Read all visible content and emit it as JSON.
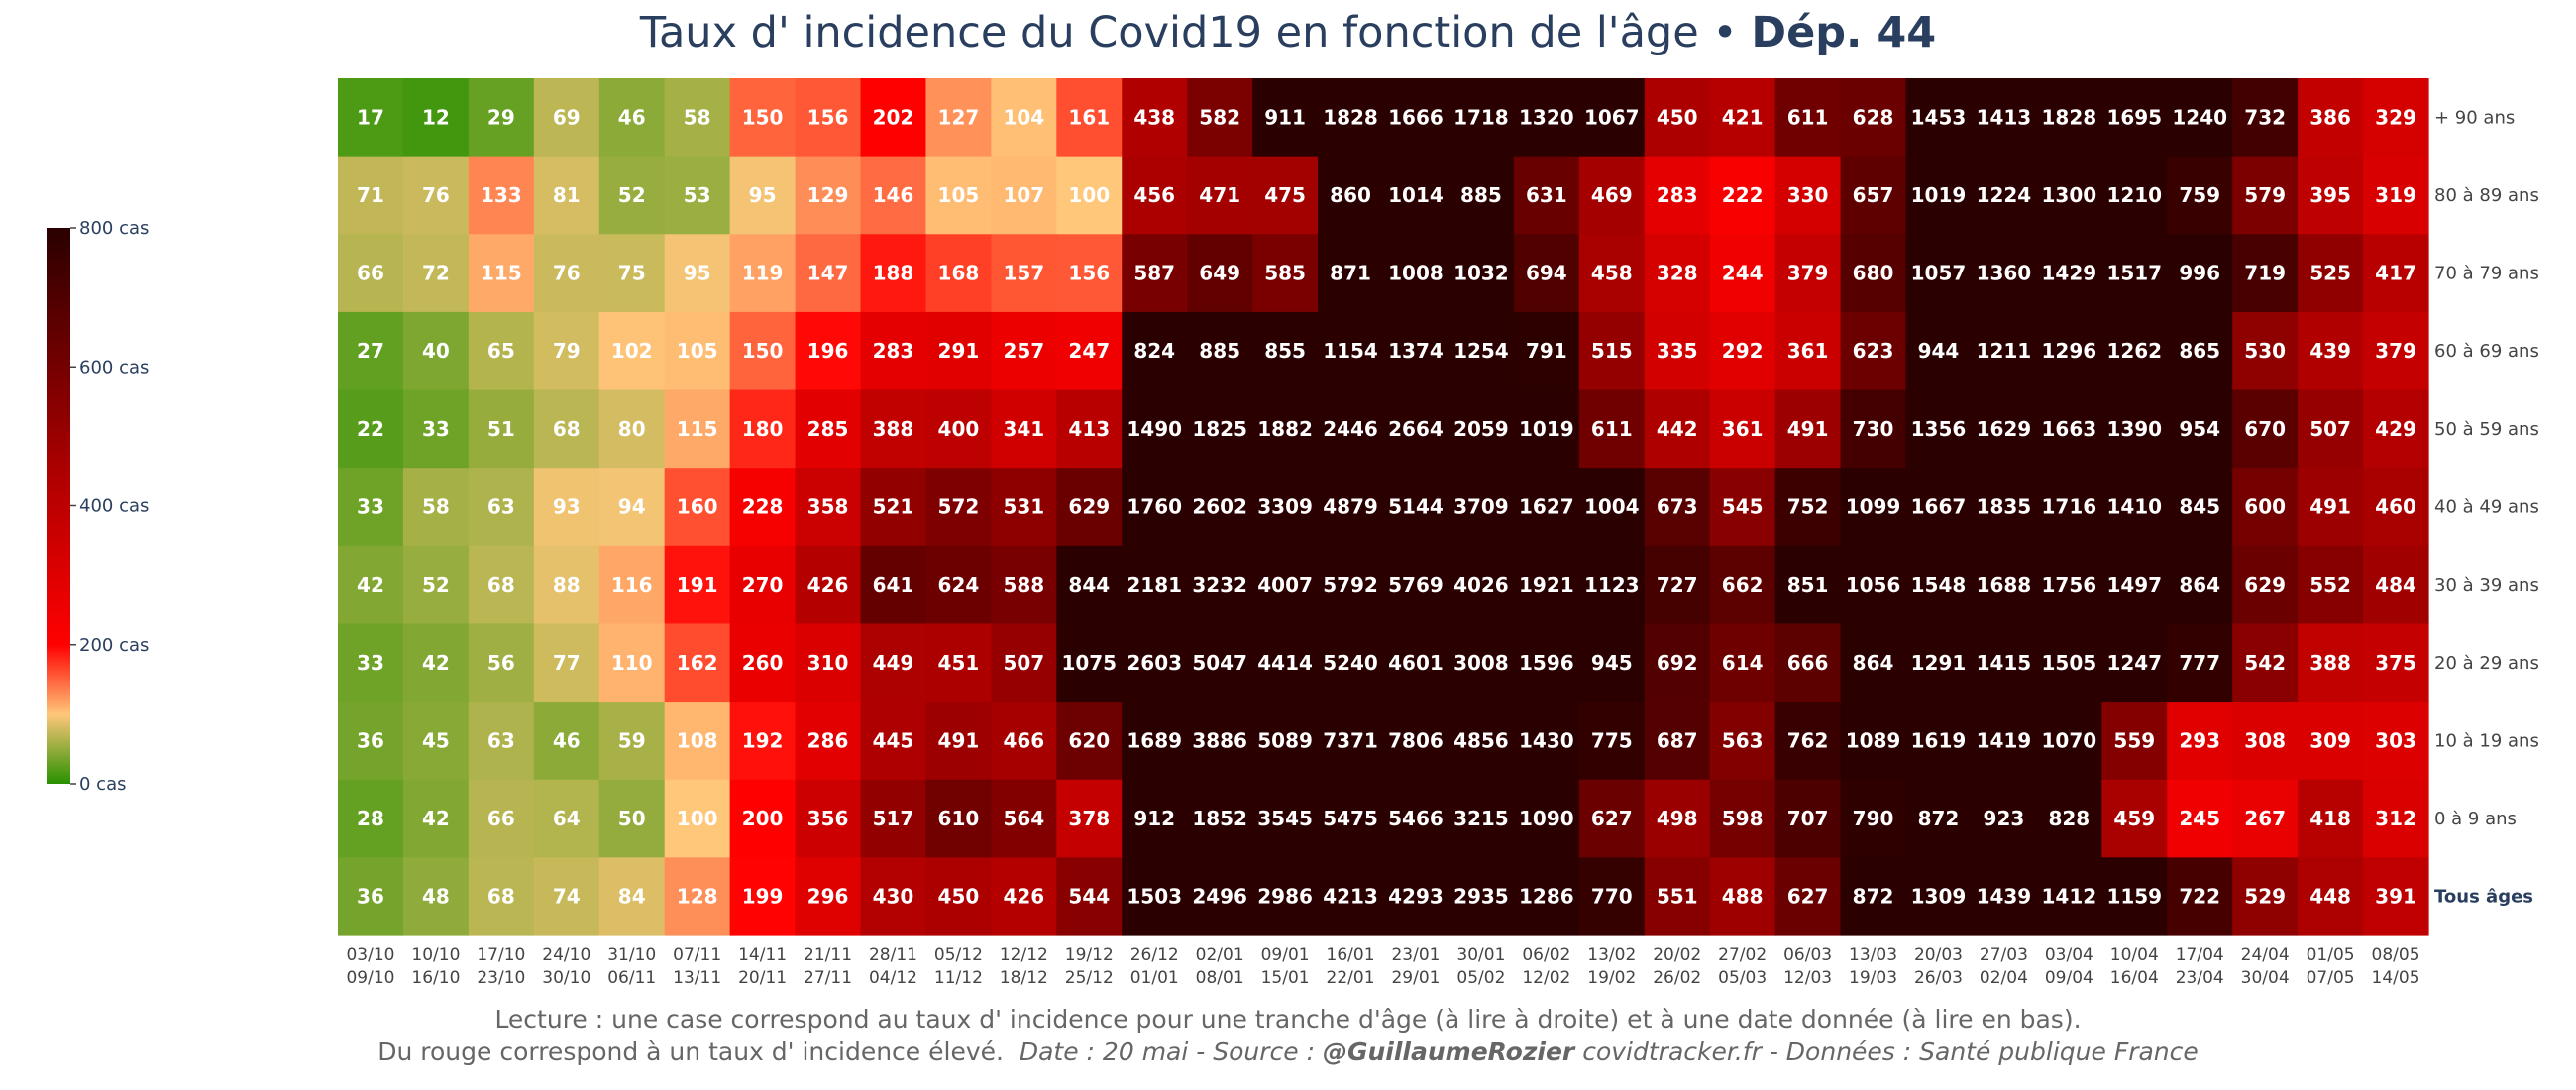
{
  "title": {
    "main": "Taux d' incidence du Covid19 en fonction de l'âge •",
    "bold": "Dép. 44"
  },
  "footer": {
    "line1": "Lecture : une case correspond au taux d' incidence pour une tranche d'âge (à lire à droite) et à une date donnée (à lire en bas).",
    "line2_a": "Du rouge correspond à un taux d' incidence élevé.",
    "line2_b": "Date : 20 mai - Source :",
    "line2_c": "@GuillaumeRozier",
    "line2_d": "covidtracker.fr - Données : Santé publique France"
  },
  "colorbar": {
    "ticks": [
      {
        "value": 0,
        "label": "0 cas"
      },
      {
        "value": 200,
        "label": "200 cas"
      },
      {
        "value": 400,
        "label": "400 cas"
      },
      {
        "value": 600,
        "label": "600 cas"
      },
      {
        "value": 800,
        "label": "800 cas"
      }
    ],
    "stops": [
      {
        "value": 0,
        "color": "#289100"
      },
      {
        "value": 100,
        "color": "#ffc77a"
      },
      {
        "value": 200,
        "color": "#ff0000"
      },
      {
        "value": 440,
        "color": "#b00000"
      },
      {
        "value": 800,
        "color": "#2a0000"
      }
    ]
  },
  "chart_data": {
    "type": "heatmap",
    "zrange": [
      0,
      800
    ],
    "x": [
      {
        "start": "03/10",
        "end": "09/10"
      },
      {
        "start": "10/10",
        "end": "16/10"
      },
      {
        "start": "17/10",
        "end": "23/10"
      },
      {
        "start": "24/10",
        "end": "30/10"
      },
      {
        "start": "31/10",
        "end": "06/11"
      },
      {
        "start": "07/11",
        "end": "13/11"
      },
      {
        "start": "14/11",
        "end": "20/11"
      },
      {
        "start": "21/11",
        "end": "27/11"
      },
      {
        "start": "28/11",
        "end": "04/12"
      },
      {
        "start": "05/12",
        "end": "11/12"
      },
      {
        "start": "12/12",
        "end": "18/12"
      },
      {
        "start": "19/12",
        "end": "25/12"
      },
      {
        "start": "26/12",
        "end": "01/01"
      },
      {
        "start": "02/01",
        "end": "08/01"
      },
      {
        "start": "09/01",
        "end": "15/01"
      },
      {
        "start": "16/01",
        "end": "22/01"
      },
      {
        "start": "23/01",
        "end": "29/01"
      },
      {
        "start": "30/01",
        "end": "05/02"
      },
      {
        "start": "06/02",
        "end": "12/02"
      },
      {
        "start": "13/02",
        "end": "19/02"
      },
      {
        "start": "20/02",
        "end": "26/02"
      },
      {
        "start": "27/02",
        "end": "05/03"
      },
      {
        "start": "06/03",
        "end": "12/03"
      },
      {
        "start": "13/03",
        "end": "19/03"
      },
      {
        "start": "20/03",
        "end": "26/03"
      },
      {
        "start": "27/03",
        "end": "02/04"
      },
      {
        "start": "03/04",
        "end": "09/04"
      },
      {
        "start": "10/04",
        "end": "16/04"
      },
      {
        "start": "17/04",
        "end": "23/04"
      },
      {
        "start": "24/04",
        "end": "30/04"
      },
      {
        "start": "01/05",
        "end": "07/05"
      },
      {
        "start": "08/05",
        "end": "14/05"
      }
    ],
    "y": [
      "+ 90 ans",
      "80 à 89 ans",
      "70 à 79 ans",
      "60 à 69 ans",
      "50 à 59 ans",
      "40 à 49 ans",
      "30 à 39 ans",
      "20 à 29 ans",
      "10 à 19 ans",
      "0 à 9 ans",
      "Tous âges"
    ],
    "z": [
      [
        17,
        12,
        29,
        69,
        46,
        58,
        150,
        156,
        202,
        127,
        104,
        161,
        438,
        582,
        911,
        1828,
        1666,
        1718,
        1320,
        1067,
        450,
        421,
        611,
        628,
        1453,
        1413,
        1828,
        1695,
        1240,
        732,
        386,
        329
      ],
      [
        71,
        76,
        133,
        81,
        52,
        53,
        95,
        129,
        146,
        105,
        107,
        100,
        456,
        471,
        475,
        860,
        1014,
        885,
        631,
        469,
        283,
        222,
        330,
        657,
        1019,
        1224,
        1300,
        1210,
        759,
        579,
        395,
        319
      ],
      [
        66,
        72,
        115,
        76,
        75,
        95,
        119,
        147,
        188,
        168,
        157,
        156,
        587,
        649,
        585,
        871,
        1008,
        1032,
        694,
        458,
        328,
        244,
        379,
        680,
        1057,
        1360,
        1429,
        1517,
        996,
        719,
        525,
        417
      ],
      [
        27,
        40,
        65,
        79,
        102,
        105,
        150,
        196,
        283,
        291,
        257,
        247,
        824,
        885,
        855,
        1154,
        1374,
        1254,
        791,
        515,
        335,
        292,
        361,
        623,
        944,
        1211,
        1296,
        1262,
        865,
        530,
        439,
        379
      ],
      [
        22,
        33,
        51,
        68,
        80,
        115,
        180,
        285,
        388,
        400,
        341,
        413,
        1490,
        1825,
        1882,
        2446,
        2664,
        2059,
        1019,
        611,
        442,
        361,
        491,
        730,
        1356,
        1629,
        1663,
        1390,
        954,
        670,
        507,
        429
      ],
      [
        33,
        58,
        63,
        93,
        94,
        160,
        228,
        358,
        521,
        572,
        531,
        629,
        1760,
        2602,
        3309,
        4879,
        5144,
        3709,
        1627,
        1004,
        673,
        545,
        752,
        1099,
        1667,
        1835,
        1716,
        1410,
        845,
        600,
        491,
        460
      ],
      [
        42,
        52,
        68,
        88,
        116,
        191,
        270,
        426,
        641,
        624,
        588,
        844,
        2181,
        3232,
        4007,
        5792,
        5769,
        4026,
        1921,
        1123,
        727,
        662,
        851,
        1056,
        1548,
        1688,
        1756,
        1497,
        864,
        629,
        552,
        484
      ],
      [
        33,
        42,
        56,
        77,
        110,
        162,
        260,
        310,
        449,
        451,
        507,
        1075,
        2603,
        5047,
        4414,
        5240,
        4601,
        3008,
        1596,
        945,
        692,
        614,
        666,
        864,
        1291,
        1415,
        1505,
        1247,
        777,
        542,
        388,
        375
      ],
      [
        36,
        45,
        63,
        46,
        59,
        108,
        192,
        286,
        445,
        491,
        466,
        620,
        1689,
        3886,
        5089,
        7371,
        7806,
        4856,
        1430,
        775,
        687,
        563,
        762,
        1089,
        1619,
        1419,
        1070,
        559,
        293,
        308,
        309,
        303
      ],
      [
        28,
        42,
        66,
        64,
        50,
        100,
        200,
        356,
        517,
        610,
        564,
        378,
        912,
        1852,
        3545,
        5475,
        5466,
        3215,
        1090,
        627,
        498,
        598,
        707,
        790,
        872,
        923,
        828,
        459,
        245,
        267,
        418,
        312
      ],
      [
        36,
        48,
        68,
        74,
        84,
        128,
        199,
        296,
        430,
        450,
        426,
        544,
        1503,
        2496,
        2986,
        4213,
        4293,
        2935,
        1286,
        770,
        551,
        488,
        627,
        872,
        1309,
        1439,
        1412,
        1159,
        722,
        529,
        448,
        391
      ]
    ]
  }
}
